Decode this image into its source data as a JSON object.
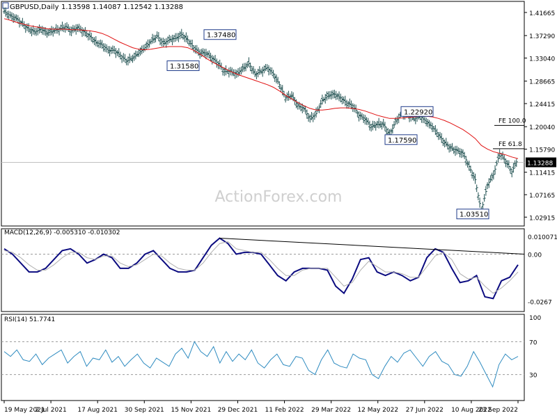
{
  "chart_data": [
    {
      "type": "ohlc",
      "title": "GBPUSD,Daily",
      "ohlc_text": "1.13598 1.14087 1.12542 1.13288",
      "watermark": "ActionForex.com",
      "y_ticks": [
        "1.41665",
        "1.37290",
        "1.33040",
        "1.28665",
        "1.24415",
        "1.20040",
        "1.15790",
        "1.11415",
        "1.07165",
        "1.02915"
      ],
      "y_tick_values": [
        1.41665,
        1.3729,
        1.3304,
        1.28665,
        1.24415,
        1.2004,
        1.1579,
        1.11415,
        1.07165,
        1.02915
      ],
      "ylim": [
        1.015,
        1.435
      ],
      "last_price_label": "1.13288",
      "last_price": 1.13288,
      "annotations": [
        {
          "text": "1.37480",
          "value": 1.3748
        },
        {
          "text": "1.31580",
          "value": 1.3158
        },
        {
          "text": "1.22920",
          "value": 1.2292
        },
        {
          "text": "1.17590",
          "value": 1.1759
        },
        {
          "text": "1.03510",
          "value": 1.0351
        },
        {
          "text": "FE 100.0",
          "value": 1.208
        },
        {
          "text": "FE 61.8",
          "value": 1.164
        }
      ],
      "x_labels": [
        "19 May 2021",
        "2 Jul 2021",
        "17 Aug 2021",
        "30 Sep 2021",
        "15 Nov 2021",
        "29 Dec 2021",
        "11 Feb 2022",
        "29 Mar 2022",
        "12 May 2022",
        "27 Jun 2022",
        "10 Aug 2022",
        "23 Sep 2022"
      ],
      "close_series": [
        1.418,
        1.41,
        1.405,
        1.395,
        1.385,
        1.38,
        1.385,
        1.378,
        1.382,
        1.385,
        1.39,
        1.382,
        1.388,
        1.38,
        1.372,
        1.36,
        1.355,
        1.345,
        1.345,
        1.335,
        1.325,
        1.33,
        1.34,
        1.35,
        1.362,
        1.372,
        1.358,
        1.365,
        1.368,
        1.375,
        1.365,
        1.35,
        1.34,
        1.34,
        1.33,
        1.32,
        1.305,
        1.305,
        1.3,
        1.31,
        1.32,
        1.3,
        1.305,
        1.312,
        1.3,
        1.28,
        1.255,
        1.26,
        1.24,
        1.235,
        1.215,
        1.225,
        1.25,
        1.26,
        1.262,
        1.255,
        1.245,
        1.24,
        1.222,
        1.215,
        1.2,
        1.205,
        1.205,
        1.185,
        1.21,
        1.225,
        1.222,
        1.215,
        1.22,
        1.21,
        1.2,
        1.185,
        1.17,
        1.16,
        1.155,
        1.15,
        1.125,
        1.1,
        1.04,
        1.09,
        1.11,
        1.15,
        1.135,
        1.115,
        1.14
      ],
      "ma_series": [
        1.405,
        1.402,
        1.398,
        1.395,
        1.392,
        1.39,
        1.388,
        1.386,
        1.385,
        1.385,
        1.385,
        1.384,
        1.384,
        1.383,
        1.382,
        1.38,
        1.377,
        1.372,
        1.366,
        1.36,
        1.355,
        1.35,
        1.347,
        1.346,
        1.347,
        1.349,
        1.351,
        1.352,
        1.352,
        1.352,
        1.35,
        1.345,
        1.338,
        1.33,
        1.323,
        1.317,
        1.311,
        1.305,
        1.3,
        1.296,
        1.292,
        1.288,
        1.284,
        1.28,
        1.275,
        1.268,
        1.26,
        1.253,
        1.246,
        1.24,
        1.235,
        1.232,
        1.232,
        1.233,
        1.235,
        1.236,
        1.236,
        1.235,
        1.233,
        1.23,
        1.226,
        1.222,
        1.219,
        1.216,
        1.216,
        1.217,
        1.218,
        1.219,
        1.22,
        1.22,
        1.219,
        1.216,
        1.212,
        1.207,
        1.201,
        1.195,
        1.187,
        1.178,
        1.165,
        1.158,
        1.153,
        1.15,
        1.147,
        1.143,
        1.14
      ]
    },
    {
      "type": "line",
      "title": "MACD(12,26,9) -0.005310 -0.010302",
      "y_ticks": [
        "0.010071",
        "0.00",
        "-0.0267"
      ],
      "y_tick_values": [
        0.010071,
        0.0,
        -0.0267
      ],
      "ylim": [
        -0.0315,
        0.0135
      ],
      "series": [
        {
          "values": [
            0.003,
            0.0,
            -0.005,
            -0.01,
            -0.01,
            -0.008,
            -0.003,
            0.002,
            0.003,
            0.0,
            -0.005,
            -0.003,
            0.0,
            -0.002,
            -0.008,
            -0.008,
            -0.005,
            0.0,
            0.002,
            -0.003,
            -0.008,
            -0.01,
            -0.01,
            -0.009,
            -0.002,
            0.005,
            0.009,
            0.006,
            0.0,
            0.001,
            0.001,
            0.0,
            -0.006,
            -0.012,
            -0.015,
            -0.01,
            -0.008,
            -0.008,
            -0.008,
            -0.009,
            -0.018,
            -0.022,
            -0.014,
            -0.003,
            -0.002,
            -0.01,
            -0.012,
            -0.01,
            -0.012,
            -0.015,
            -0.013,
            -0.002,
            0.003,
            0.001,
            -0.008,
            -0.016,
            -0.015,
            -0.012,
            -0.024,
            -0.025,
            -0.015,
            -0.013,
            -0.006
          ],
          "color": "#0b0b80"
        },
        {
          "values": [
            0.002,
            0.001,
            -0.002,
            -0.006,
            -0.009,
            -0.009,
            -0.006,
            -0.002,
            0.001,
            0.001,
            -0.002,
            -0.003,
            -0.001,
            -0.001,
            -0.005,
            -0.007,
            -0.006,
            -0.003,
            0.0,
            -0.001,
            -0.005,
            -0.008,
            -0.009,
            -0.009,
            -0.005,
            0.001,
            0.006,
            0.007,
            0.003,
            0.002,
            0.001,
            0.001,
            -0.003,
            -0.008,
            -0.012,
            -0.012,
            -0.009,
            -0.008,
            -0.008,
            -0.008,
            -0.013,
            -0.018,
            -0.016,
            -0.009,
            -0.004,
            -0.007,
            -0.01,
            -0.01,
            -0.011,
            -0.013,
            -0.013,
            -0.007,
            -0.001,
            0.001,
            -0.003,
            -0.011,
            -0.014,
            -0.013,
            -0.018,
            -0.022,
            -0.019,
            -0.015,
            -0.01
          ],
          "color": "#b0b0b0"
        }
      ]
    },
    {
      "type": "line",
      "title": "RSI(14) 51.7741",
      "y_ticks": [
        "100",
        "70",
        "30"
      ],
      "y_tick_values": [
        100,
        70,
        30
      ],
      "ylim": [
        0,
        100
      ],
      "series": [
        {
          "values": [
            58,
            52,
            60,
            48,
            46,
            55,
            42,
            50,
            55,
            60,
            44,
            52,
            58,
            40,
            50,
            48,
            60,
            45,
            52,
            40,
            48,
            55,
            44,
            38,
            50,
            45,
            40,
            55,
            62,
            50,
            70,
            58,
            52,
            64,
            44,
            58,
            46,
            55,
            48,
            60,
            44,
            38,
            48,
            55,
            42,
            40,
            52,
            50,
            35,
            30,
            48,
            60,
            44,
            40,
            38,
            55,
            50,
            48,
            30,
            25,
            40,
            52,
            45,
            56,
            60,
            50,
            40,
            52,
            58,
            46,
            42,
            30,
            28,
            40,
            58,
            45,
            30,
            15,
            42,
            55,
            48,
            52
          ],
          "color": "#2e8bc0"
        }
      ]
    }
  ],
  "colors": {
    "bars": "#1e4f4f",
    "ma": "#e01010",
    "macd_main": "#0b0b80",
    "macd_signal": "#b0b0b0",
    "rsi": "#2e8bc0"
  }
}
